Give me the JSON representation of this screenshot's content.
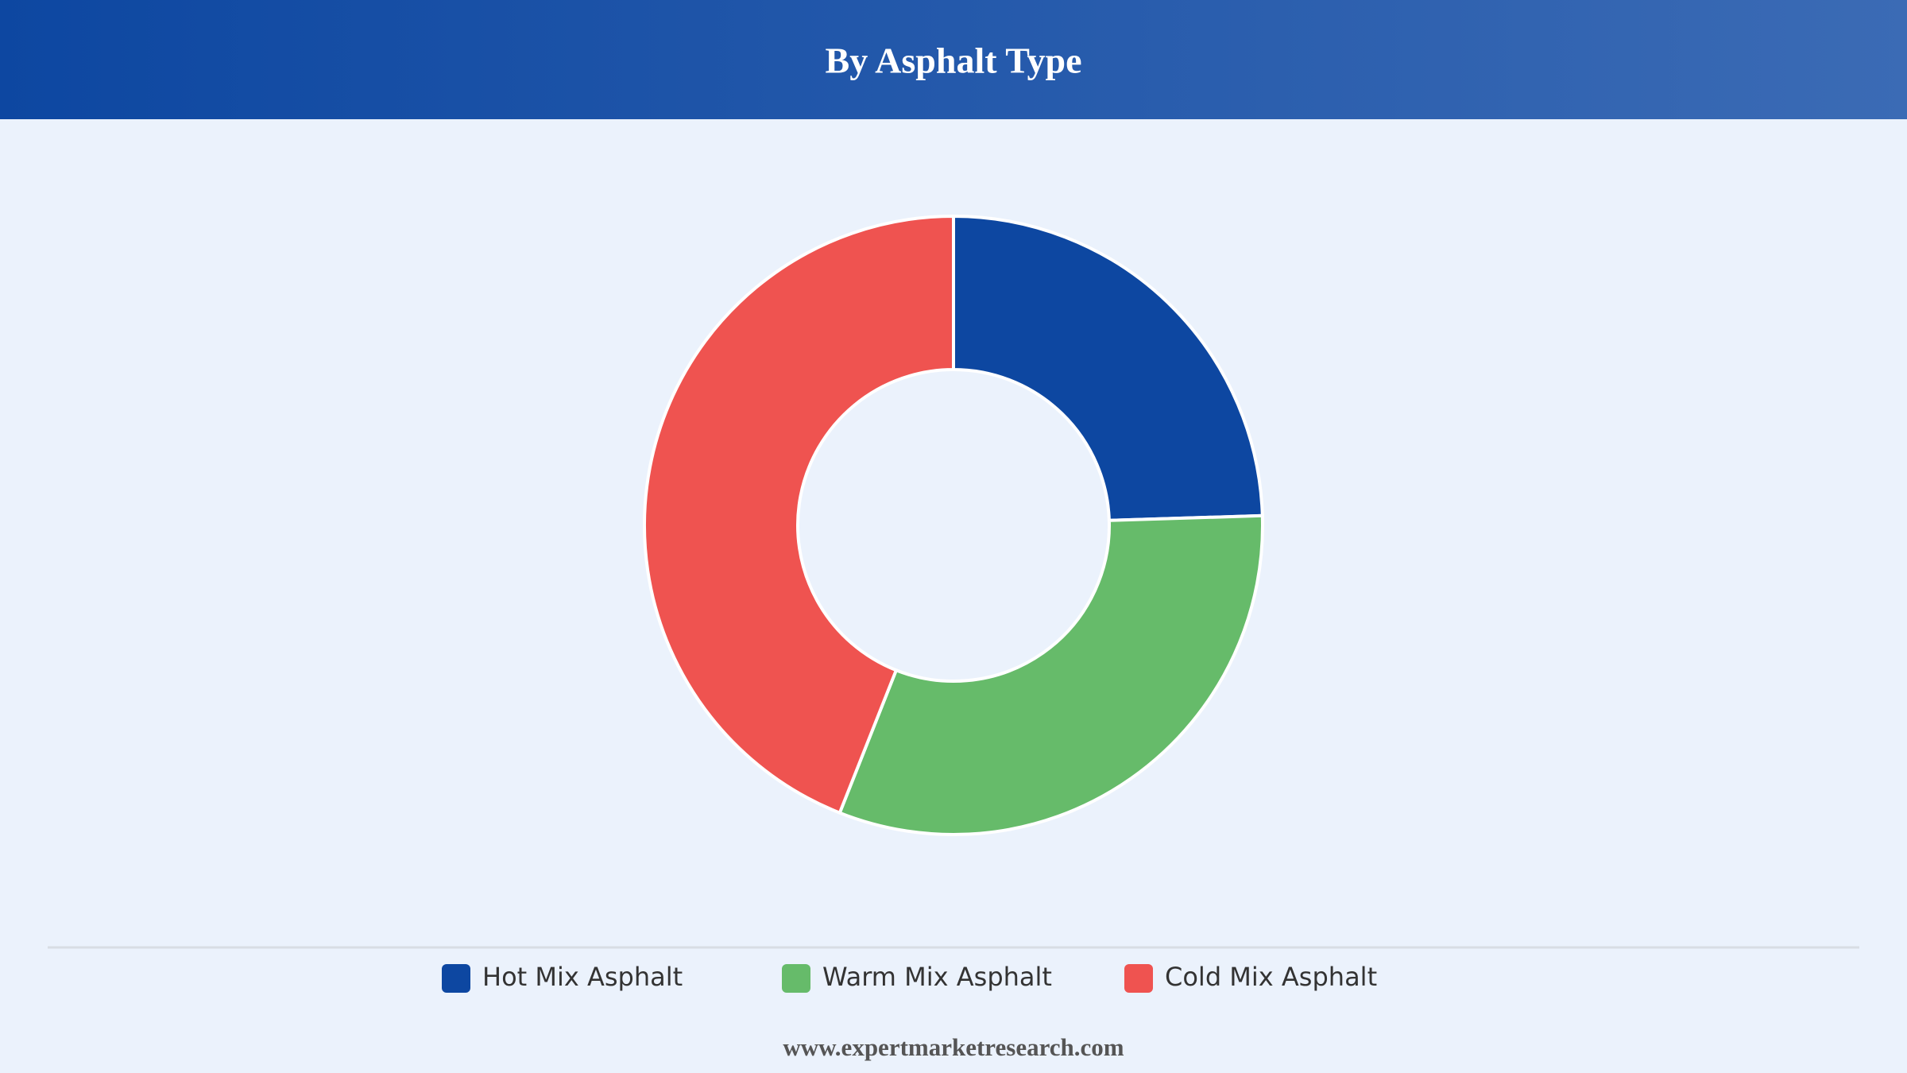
{
  "chart_data": {
    "type": "donut",
    "title": "By Asphalt Type",
    "categories": [
      "Hot Mix Asphalt",
      "Warm Mix Asphalt",
      "Cold Mix Asphalt"
    ],
    "values": [
      24.5,
      31.5,
      44
    ],
    "colors": [
      "#0d47a1",
      "#66bb6a",
      "#ef5350"
    ],
    "legend": "bottom",
    "source": "www.expertmarketresearch.com"
  }
}
